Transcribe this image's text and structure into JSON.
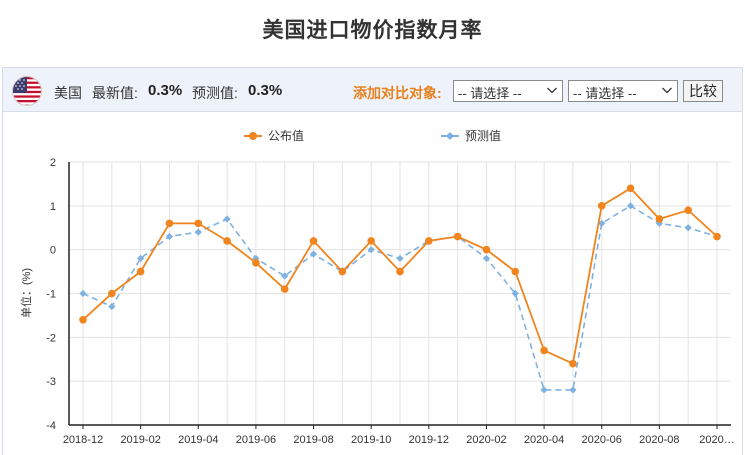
{
  "page": {
    "title": "美国进口物价指数月率"
  },
  "toolbar": {
    "country": "美国",
    "latest_label": "最新值:",
    "latest_value": "0.3%",
    "forecast_label": "预测值:",
    "forecast_value": "0.3%",
    "compare_label": "添加对比对象:",
    "select1": "-- 请选择 --",
    "select2": "-- 请选择 --",
    "compare_button": "比较"
  },
  "colors": {
    "published": "#f0841e",
    "forecast": "#7fb2e0"
  },
  "chart_data": {
    "type": "line",
    "ylabel": "单位：(%)",
    "ylim": [
      -4,
      2
    ],
    "yticks": [
      2,
      1,
      0,
      -1,
      -2,
      -3,
      -4
    ],
    "x": [
      "2018-12",
      "2019-01",
      "2019-02",
      "2019-03",
      "2019-04",
      "2019-05",
      "2019-06",
      "2019-07",
      "2019-08",
      "2019-09",
      "2019-10",
      "2019-11",
      "2019-12",
      "2020-01",
      "2020-02",
      "2020-03",
      "2020-04",
      "2020-05",
      "2020-06",
      "2020-07",
      "2020-08",
      "2020-09",
      "2020-10"
    ],
    "xtick_labels": [
      "2018-12",
      "2019-02",
      "2019-04",
      "2019-06",
      "2019-08",
      "2019-10",
      "2019-12",
      "2020-02",
      "2020-04",
      "2020-06",
      "2020-08",
      "2020…"
    ],
    "legend": "top-center",
    "grid": true,
    "series": [
      {
        "name": "公布值",
        "style": "solid",
        "values": [
          -1.6,
          -1.0,
          -0.5,
          0.6,
          0.6,
          0.2,
          -0.3,
          -0.9,
          0.2,
          -0.5,
          0.2,
          -0.5,
          0.2,
          0.3,
          0.0,
          -0.5,
          -2.3,
          -2.6,
          1.0,
          1.4,
          0.7,
          0.9,
          0.3
        ]
      },
      {
        "name": "预测值",
        "style": "dashed",
        "values": [
          -1.0,
          -1.3,
          -0.2,
          0.3,
          0.4,
          0.7,
          -0.2,
          -0.6,
          -0.1,
          -0.5,
          0.0,
          -0.2,
          0.2,
          0.3,
          -0.2,
          -1.0,
          -3.2,
          -3.2,
          0.6,
          1.0,
          0.6,
          0.5,
          0.3
        ]
      }
    ]
  }
}
